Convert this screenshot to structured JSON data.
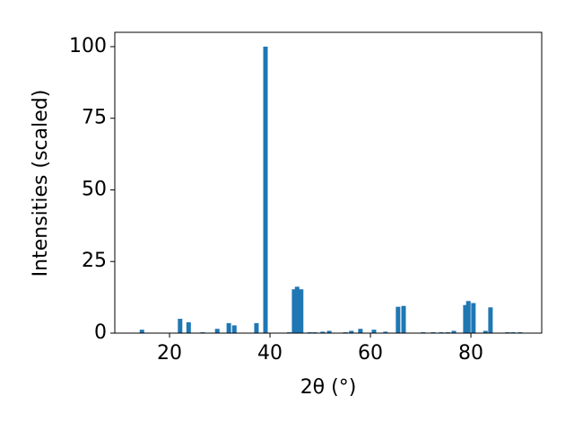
{
  "chart_data": {
    "type": "bar",
    "xlabel": "2θ (°)",
    "ylabel": "Intensities (scaled)",
    "color": "#1f77b4",
    "x": [
      14.5,
      22.1,
      23.8,
      26.6,
      29.5,
      31.8,
      32.9,
      37.3,
      39.1,
      43.8,
      44.8,
      45.4,
      46.2,
      47.9,
      48.9,
      50.5,
      51.8,
      55.0,
      56.2,
      58.0,
      60.7,
      63.0,
      65.5,
      66.6,
      70.5,
      72.5,
      74.1,
      75.4,
      76.6,
      78.9,
      79.5,
      80.5,
      82.9,
      83.9,
      87.3,
      88.4,
      89.8
    ],
    "values": [
      1.2,
      5,
      3.8,
      0.3,
      1.5,
      3.5,
      2.7,
      3.5,
      100,
      0.3,
      15.3,
      16.2,
      15.3,
      0.3,
      0.3,
      0.5,
      0.8,
      0.3,
      0.8,
      1.5,
      1.2,
      0.5,
      9.2,
      9.5,
      0.3,
      0.3,
      0.3,
      0.3,
      0.8,
      9.8,
      11.2,
      10.5,
      0.8,
      9,
      0.3,
      0.3,
      0.3
    ],
    "xlim": [
      9.1,
      94.1
    ],
    "xticks": [
      20,
      40,
      60,
      80
    ],
    "ylim": [
      0,
      105
    ],
    "yticks": [
      0,
      25,
      50,
      75,
      100
    ]
  }
}
